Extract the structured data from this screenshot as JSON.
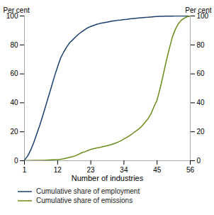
{
  "chart_data": {
    "type": "line",
    "xlabel": "Number of industries",
    "ylabel": "Per cent",
    "y2label": "Per cent",
    "x": [
      1,
      2,
      3,
      4,
      5,
      6,
      7,
      8,
      9,
      10,
      11,
      12,
      13,
      14,
      15,
      16,
      17,
      18,
      19,
      20,
      21,
      22,
      23,
      24,
      25,
      26,
      27,
      28,
      29,
      30,
      31,
      32,
      33,
      34,
      35,
      36,
      37,
      38,
      39,
      40,
      41,
      42,
      43,
      44,
      45,
      46,
      47,
      48,
      49,
      50,
      51,
      52,
      53,
      54,
      55,
      56
    ],
    "series": [
      {
        "name": "Cumulative share of employment",
        "color": "#1a3f6f",
        "values": [
          0.5,
          3.0,
          7.0,
          12.0,
          18.0,
          24.0,
          30.5,
          37.5,
          44.5,
          51.5,
          58.5,
          65.0,
          71.0,
          75.0,
          78.5,
          81.5,
          83.5,
          85.5,
          87.5,
          89.0,
          90.5,
          91.8,
          92.8,
          93.5,
          94.2,
          94.8,
          95.2,
          95.6,
          96.0,
          96.4,
          96.7,
          97.0,
          97.2,
          97.5,
          97.7,
          98.0,
          98.2,
          98.4,
          98.6,
          98.8,
          99.0,
          99.1,
          99.3,
          99.5,
          99.6,
          99.7,
          99.8,
          99.9,
          99.9,
          99.9,
          100.0,
          100.0,
          100.0,
          100.0,
          100.0,
          100.0
        ]
      },
      {
        "name": "Cumulative share of emissions",
        "color": "#6b8c1a",
        "values": [
          0.0,
          0.1,
          0.1,
          0.2,
          0.2,
          0.3,
          0.3,
          0.4,
          0.5,
          0.6,
          0.7,
          0.8,
          1.0,
          1.3,
          1.8,
          2.3,
          2.8,
          3.5,
          4.5,
          5.5,
          6.2,
          7.0,
          7.8,
          8.3,
          8.8,
          9.2,
          9.7,
          10.2,
          10.7,
          11.3,
          12.0,
          12.8,
          13.8,
          15.0,
          16.2,
          17.5,
          19.0,
          20.5,
          22.0,
          24.0,
          26.5,
          29.0,
          32.5,
          37.5,
          42.0,
          50.0,
          59.0,
          68.5,
          77.0,
          85.0,
          90.5,
          94.5,
          97.0,
          98.5,
          99.5,
          100.0
        ]
      }
    ],
    "xlim": [
      1,
      56
    ],
    "ylim": [
      0,
      100
    ],
    "xticks": [
      1,
      12,
      23,
      34,
      45,
      56
    ],
    "yticks": [
      0,
      20,
      40,
      60,
      80,
      100
    ],
    "y2lim": [
      0,
      100
    ],
    "y2ticks": [
      0,
      20,
      40,
      60,
      80,
      100
    ],
    "grid": false,
    "legend": "lower left"
  }
}
